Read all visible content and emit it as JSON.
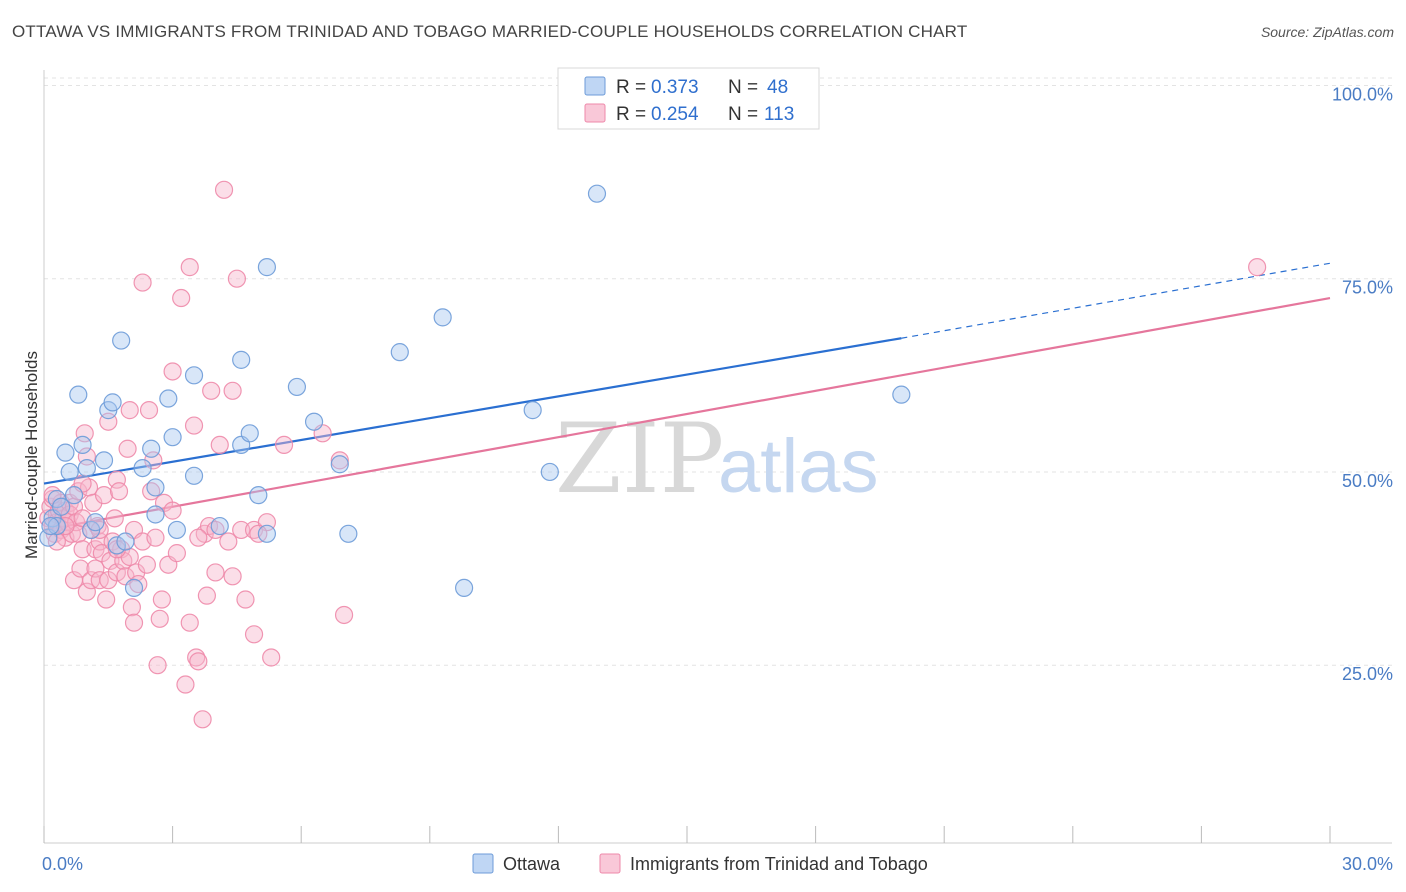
{
  "header": {
    "title": "OTTAWA VS IMMIGRANTS FROM TRINIDAD AND TOBAGO MARRIED-COUPLE HOUSEHOLDS CORRELATION CHART",
    "source": "Source: ZipAtlas.com"
  },
  "watermark": {
    "zip": "ZIP",
    "atlas": "atlas"
  },
  "legend": {
    "r_label": "R =",
    "n_label": "N =",
    "rows": [
      {
        "r": "0.373",
        "n": "48"
      },
      {
        "r": "0.254",
        "n": "113"
      }
    ]
  },
  "colors": {
    "ottawa_fill": "#a9c8f0",
    "ottawa_stroke": "#6d9bd8",
    "ottawa_line": "#2a6fd1",
    "tt_fill": "#f7b6cb",
    "tt_stroke": "#ee89aa",
    "tt_line": "#e5769c",
    "grid": "#e3e3e3",
    "axis_label": "#4a7cc4"
  },
  "chart_data": {
    "type": "scatter",
    "title": "OTTAWA VS IMMIGRANTS FROM TRINIDAD AND TOBAGO MARRIED-COUPLE HOUSEHOLDS CORRELATION CHART",
    "xlabel": "",
    "ylabel": "Married-couple Households",
    "xlim": [
      0,
      30
    ],
    "ylim": [
      2,
      102
    ],
    "x_tick_labels": [
      "0.0%",
      "30.0%"
    ],
    "y_ticks": [
      25,
      50,
      75,
      100
    ],
    "y_tick_labels": [
      "25.0%",
      "50.0%",
      "75.0%",
      "100.0%"
    ],
    "legend_placement": "top-center",
    "series": [
      {
        "name": "Ottawa",
        "r": 0.373,
        "n": 48,
        "trend": {
          "x0": 0,
          "y0": 48.5,
          "x1": 20,
          "y1": 67.3,
          "dashed_to_x": 30,
          "dashed_to_y": 77.0
        },
        "points": [
          [
            0.1,
            41.5
          ],
          [
            0.2,
            44.0
          ],
          [
            0.3,
            46.5
          ],
          [
            0.3,
            43.0
          ],
          [
            0.4,
            45.5
          ],
          [
            0.5,
            52.5
          ],
          [
            0.6,
            50.0
          ],
          [
            0.7,
            47.0
          ],
          [
            0.8,
            60.0
          ],
          [
            0.9,
            53.5
          ],
          [
            1.0,
            50.5
          ],
          [
            1.1,
            42.5
          ],
          [
            1.2,
            43.5
          ],
          [
            1.4,
            51.5
          ],
          [
            1.5,
            58.0
          ],
          [
            1.6,
            59.0
          ],
          [
            1.7,
            40.5
          ],
          [
            1.8,
            67.0
          ],
          [
            1.9,
            41.0
          ],
          [
            2.1,
            35.0
          ],
          [
            2.3,
            50.5
          ],
          [
            2.5,
            53.0
          ],
          [
            2.6,
            44.5
          ],
          [
            2.6,
            48.0
          ],
          [
            2.9,
            59.5
          ],
          [
            3.0,
            54.5
          ],
          [
            3.1,
            42.5
          ],
          [
            3.5,
            62.5
          ],
          [
            3.5,
            49.5
          ],
          [
            4.1,
            43.0
          ],
          [
            4.6,
            64.5
          ],
          [
            4.6,
            53.5
          ],
          [
            4.8,
            55.0
          ],
          [
            5.0,
            47.0
          ],
          [
            5.2,
            42.0
          ],
          [
            5.2,
            76.5
          ],
          [
            5.9,
            61.0
          ],
          [
            6.3,
            56.5
          ],
          [
            6.9,
            51.0
          ],
          [
            7.1,
            42.0
          ],
          [
            8.3,
            65.5
          ],
          [
            9.3,
            70.0
          ],
          [
            9.8,
            35.0
          ],
          [
            11.4,
            58.0
          ],
          [
            11.8,
            50.0
          ],
          [
            12.9,
            86.0
          ],
          [
            20.0,
            60.0
          ],
          [
            0.15,
            43.0
          ]
        ]
      },
      {
        "name": "Immigrants from Trinidad and Tobago",
        "r": 0.254,
        "n": 113,
        "trend": {
          "x0": 0,
          "y0": 42.5,
          "x1": 30,
          "y1": 72.5
        },
        "points": [
          [
            0.1,
            44.0
          ],
          [
            0.15,
            45.5
          ],
          [
            0.2,
            43.0
          ],
          [
            0.2,
            46.5
          ],
          [
            0.25,
            42.0
          ],
          [
            0.3,
            44.5
          ],
          [
            0.3,
            43.5
          ],
          [
            0.35,
            45.0
          ],
          [
            0.4,
            46.0
          ],
          [
            0.4,
            42.5
          ],
          [
            0.45,
            44.0
          ],
          [
            0.5,
            45.0
          ],
          [
            0.5,
            41.5
          ],
          [
            0.55,
            43.5
          ],
          [
            0.6,
            46.0
          ],
          [
            0.6,
            44.5
          ],
          [
            0.65,
            42.0
          ],
          [
            0.7,
            45.5
          ],
          [
            0.7,
            36.0
          ],
          [
            0.75,
            43.5
          ],
          [
            0.8,
            47.5
          ],
          [
            0.8,
            42.0
          ],
          [
            0.85,
            37.5
          ],
          [
            0.9,
            44.0
          ],
          [
            0.9,
            40.0
          ],
          [
            0.95,
            55.0
          ],
          [
            1.0,
            52.0
          ],
          [
            1.0,
            34.5
          ],
          [
            1.05,
            48.0
          ],
          [
            1.1,
            42.5
          ],
          [
            1.1,
            36.0
          ],
          [
            1.15,
            46.0
          ],
          [
            1.2,
            40.0
          ],
          [
            1.2,
            37.5
          ],
          [
            1.25,
            43.0
          ],
          [
            1.3,
            36.0
          ],
          [
            1.3,
            41.0
          ],
          [
            1.35,
            39.5
          ],
          [
            1.4,
            47.0
          ],
          [
            1.45,
            33.5
          ],
          [
            1.5,
            56.5
          ],
          [
            1.5,
            36.0
          ],
          [
            1.55,
            38.5
          ],
          [
            1.6,
            41.0
          ],
          [
            1.65,
            44.0
          ],
          [
            1.7,
            49.0
          ],
          [
            1.7,
            37.0
          ],
          [
            1.75,
            47.5
          ],
          [
            1.8,
            40.0
          ],
          [
            1.85,
            38.5
          ],
          [
            1.9,
            36.5
          ],
          [
            1.95,
            53.0
          ],
          [
            2.0,
            39.0
          ],
          [
            2.0,
            58.0
          ],
          [
            2.05,
            32.5
          ],
          [
            2.1,
            42.5
          ],
          [
            2.15,
            37.0
          ],
          [
            2.2,
            35.5
          ],
          [
            2.3,
            41.0
          ],
          [
            2.3,
            74.5
          ],
          [
            2.4,
            38.0
          ],
          [
            2.45,
            58.0
          ],
          [
            2.5,
            47.5
          ],
          [
            2.55,
            51.5
          ],
          [
            2.6,
            41.5
          ],
          [
            2.65,
            25.0
          ],
          [
            2.7,
            31.0
          ],
          [
            2.75,
            33.5
          ],
          [
            2.8,
            46.0
          ],
          [
            2.9,
            38.0
          ],
          [
            3.0,
            45.0
          ],
          [
            3.0,
            63.0
          ],
          [
            3.1,
            39.5
          ],
          [
            3.2,
            72.5
          ],
          [
            3.3,
            22.5
          ],
          [
            3.4,
            76.5
          ],
          [
            3.4,
            30.5
          ],
          [
            3.5,
            56.0
          ],
          [
            3.55,
            26.0
          ],
          [
            3.6,
            25.5
          ],
          [
            3.7,
            18.0
          ],
          [
            3.75,
            42.0
          ],
          [
            3.8,
            34.0
          ],
          [
            3.85,
            43.0
          ],
          [
            3.9,
            60.5
          ],
          [
            4.0,
            42.5
          ],
          [
            4.1,
            53.5
          ],
          [
            4.2,
            86.5
          ],
          [
            4.3,
            41.0
          ],
          [
            4.4,
            36.5
          ],
          [
            4.4,
            60.5
          ],
          [
            4.5,
            75.0
          ],
          [
            4.6,
            42.5
          ],
          [
            4.7,
            33.5
          ],
          [
            4.9,
            42.5
          ],
          [
            4.9,
            29.0
          ],
          [
            5.2,
            43.5
          ],
          [
            5.3,
            26.0
          ],
          [
            5.6,
            53.5
          ],
          [
            6.5,
            55.0
          ],
          [
            6.9,
            51.5
          ],
          [
            7.0,
            31.5
          ],
          [
            28.3,
            76.5
          ],
          [
            0.3,
            41.0
          ],
          [
            0.5,
            43.0
          ],
          [
            0.9,
            48.5
          ],
          [
            1.3,
            42.5
          ],
          [
            1.7,
            40.0
          ],
          [
            2.1,
            30.5
          ],
          [
            3.6,
            41.5
          ],
          [
            4.0,
            37.0
          ],
          [
            5.0,
            42.0
          ],
          [
            0.2,
            47.0
          ]
        ]
      }
    ]
  },
  "bottom_legend": {
    "items": [
      "Ottawa",
      "Immigrants from Trinidad and Tobago"
    ]
  }
}
